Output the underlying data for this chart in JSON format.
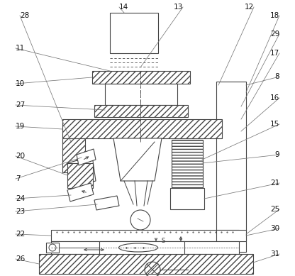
{
  "bg_color": "#ffffff",
  "lc": "#444444",
  "figsize": [
    4.16,
    3.89
  ],
  "dpi": 100,
  "fs": 7.5
}
